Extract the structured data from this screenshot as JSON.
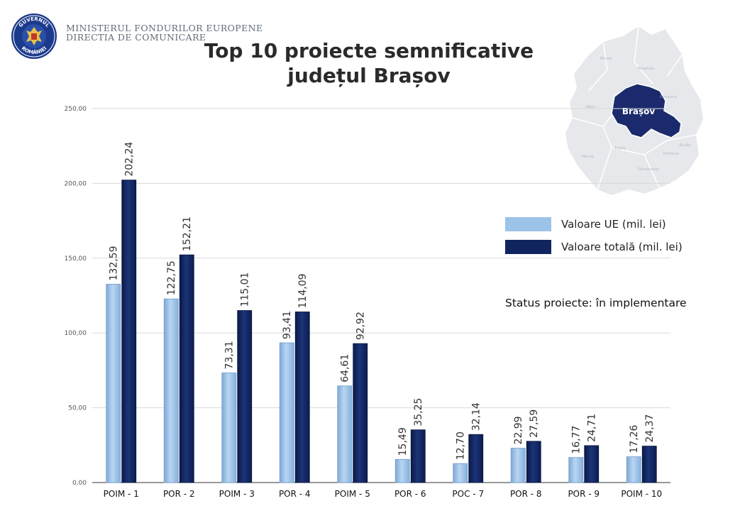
{
  "header": {
    "org_line1": "Ministerul Fondurilor Europene",
    "org_line2": "Directia de comunicare",
    "logo_text_top": "GUVERNUL",
    "logo_text_bottom": "ROMÂNIEI"
  },
  "title_line1": "Top 10 proiecte semnificative",
  "title_line2": "județul Brașov",
  "map": {
    "highlight_label": "Brașov",
    "neighbor_labels": [
      "Mureș",
      "Harghita",
      "Covasna",
      "Sibiu",
      "Buzău",
      "Argeș",
      "Prahova",
      "Vâlcea",
      "Dâmbovița"
    ]
  },
  "legend": {
    "ue_label": "Valoare UE (mil. lei)",
    "total_label": "Valoare totală (mil. lei)"
  },
  "status_text": "Status proiecte: în implementare",
  "colors": {
    "ue": "#9cc3e8",
    "total": "#10245e",
    "map_highlight": "#1a2a6c",
    "map_base": "#e4e6ea",
    "grid": "#d9d9d9"
  },
  "chart_data": {
    "type": "bar",
    "categories": [
      "POIM - 1",
      "POR - 2",
      "POIM - 3",
      "POR - 4",
      "POIM - 5",
      "POR - 6",
      "POC - 7",
      "POR - 8",
      "POR - 9",
      "POIM - 10"
    ],
    "series": [
      {
        "name": "Valoare UE (mil. lei)",
        "values": [
          132.59,
          122.75,
          73.31,
          93.41,
          64.61,
          15.49,
          12.7,
          22.99,
          16.77,
          17.26
        ],
        "labels": [
          "132,59",
          "122,75",
          "73,31",
          "93,41",
          "64,61",
          "15,49",
          "12,70",
          "22,99",
          "16,77",
          "17,26"
        ]
      },
      {
        "name": "Valoare totală (mil. lei)",
        "values": [
          202.24,
          152.21,
          115.01,
          114.09,
          92.92,
          35.25,
          32.14,
          27.59,
          24.71,
          24.37
        ],
        "labels": [
          "202,24",
          "152,21",
          "115,01",
          "114,09",
          "92,92",
          "35,25",
          "32,14",
          "27,59",
          "24,71",
          "24,37"
        ]
      }
    ],
    "yticks": [
      0,
      50,
      100,
      150,
      200,
      250
    ],
    "ytick_labels": [
      "0,00",
      "50,00",
      "100,00",
      "150,00",
      "200,00",
      "250,00"
    ],
    "ylim": [
      0,
      250
    ],
    "grid": true,
    "legend_position": "right"
  }
}
